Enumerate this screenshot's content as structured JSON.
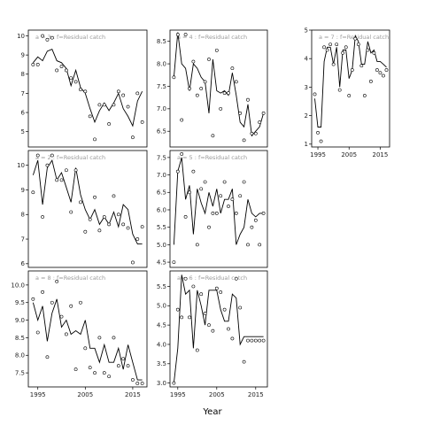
{
  "xlabel": "Year",
  "chart_data": {
    "type": "line",
    "xlabel": "Year",
    "ylabel": "",
    "xlim": [
      1993,
      2018
    ],
    "x_ticks": [
      1995,
      2005,
      2015
    ],
    "panels": [
      {
        "label": "a = 3 : f=Residual catch",
        "col": 0,
        "row": 0,
        "show_x_ticks": false,
        "ylim": [
          4.2,
          10.3
        ],
        "y_ticks": [
          5,
          6,
          7,
          8,
          9,
          10
        ],
        "line_x": [
          1994,
          1995,
          1996,
          1997,
          1998,
          1999,
          2000,
          2001,
          2002,
          2003,
          2004,
          2005,
          2006,
          2007,
          2008,
          2009,
          2010,
          2011,
          2012,
          2013,
          2014,
          2015,
          2016,
          2017
        ],
        "line_y": [
          8.6,
          8.9,
          8.7,
          9.2,
          9.3,
          8.7,
          8.6,
          8.3,
          7.4,
          8.2,
          7.3,
          7.0,
          6.2,
          5.5,
          6.1,
          6.5,
          6.1,
          6.5,
          7.0,
          6.2,
          5.8,
          5.3,
          6.6,
          7.1
        ],
        "points_x": [
          1994,
          1995,
          1996,
          1997,
          1998,
          1999,
          2000,
          2001,
          2002,
          2003,
          2004,
          2005,
          2006,
          2007,
          2008,
          2009,
          2010,
          2011,
          2012,
          2013,
          2014,
          2015,
          2016,
          2017
        ],
        "points_y": [
          8.5,
          8.5,
          10.0,
          9.8,
          9.9,
          8.2,
          8.4,
          8.2,
          7.8,
          7.6,
          7.2,
          7.1,
          5.8,
          4.6,
          6.4,
          6.4,
          5.4,
          6.4,
          7.1,
          6.9,
          6.3,
          4.7,
          7.0,
          5.5
        ]
      },
      {
        "label": "a = 4 : f=Residual catch",
        "col": 1,
        "row": 0,
        "show_x_ticks": false,
        "ylim": [
          6.15,
          8.75
        ],
        "y_ticks": [
          6.5,
          7.0,
          7.5,
          8.0,
          8.5
        ],
        "line_x": [
          1994,
          1995,
          1996,
          1997,
          1998,
          1999,
          2000,
          2001,
          2002,
          2003,
          2004,
          2005,
          2006,
          2007,
          2008,
          2009,
          2010,
          2011,
          2012,
          2013,
          2014,
          2015,
          2016,
          2017
        ],
        "line_y": [
          7.7,
          8.7,
          8.0,
          7.9,
          7.4,
          8.0,
          7.9,
          7.7,
          7.6,
          6.9,
          8.1,
          7.4,
          7.35,
          7.4,
          7.3,
          7.8,
          7.3,
          6.7,
          6.6,
          7.1,
          6.4,
          6.5,
          6.6,
          6.9
        ],
        "points_x": [
          1994,
          1995,
          1996,
          1997,
          1998,
          1999,
          2000,
          2001,
          2002,
          2003,
          2004,
          2005,
          2006,
          2007,
          2008,
          2009,
          2010,
          2011,
          2012,
          2013,
          2014,
          2015,
          2016,
          2017
        ],
        "points_y": [
          7.7,
          8.65,
          6.75,
          8.65,
          7.45,
          8.05,
          7.3,
          7.45,
          7.6,
          8.1,
          6.4,
          8.3,
          7.0,
          7.35,
          7.35,
          7.9,
          7.6,
          6.9,
          6.3,
          7.2,
          6.45,
          6.45,
          6.7,
          6.9
        ]
      },
      {
        "label": "a = 7 : f=Residual catch",
        "col": 2,
        "row": 0,
        "show_x_ticks": true,
        "ylim": [
          0.9,
          5.0
        ],
        "y_ticks": [
          1,
          2,
          3,
          4,
          5
        ],
        "line_x": [
          1994,
          1995,
          1996,
          1997,
          1998,
          1999,
          2000,
          2001,
          2002,
          2003,
          2004,
          2005,
          2006,
          2007,
          2008,
          2009,
          2010,
          2011,
          2012,
          2013,
          2014,
          2015,
          2016,
          2017
        ],
        "line_y": [
          2.6,
          1.6,
          1.6,
          3.9,
          4.4,
          4.4,
          3.8,
          4.4,
          3.0,
          4.3,
          4.3,
          3.3,
          3.6,
          4.8,
          4.6,
          3.8,
          3.8,
          4.6,
          4.2,
          4.3,
          3.9,
          3.9,
          3.8,
          3.7
        ],
        "points_x": [
          1994,
          1995,
          1996,
          1997,
          1998,
          1999,
          2000,
          2001,
          2002,
          2003,
          2004,
          2005,
          2006,
          2007,
          2008,
          2009,
          2010,
          2011,
          2012,
          2013,
          2014,
          2015,
          2016,
          2017
        ],
        "points_y": [
          2.75,
          1.4,
          1.1,
          4.4,
          4.3,
          4.5,
          3.8,
          4.5,
          2.9,
          4.2,
          4.4,
          2.7,
          3.6,
          4.7,
          4.5,
          3.75,
          2.7,
          4.3,
          3.2,
          4.2,
          3.6,
          3.5,
          3.4,
          3.6
        ]
      },
      {
        "label": "a = 2 : f=Residual catch",
        "col": 0,
        "row": 1,
        "show_x_ticks": false,
        "ylim": [
          5.85,
          10.6
        ],
        "y_ticks": [
          6,
          7,
          8,
          9,
          10
        ],
        "line_x": [
          1994,
          1995,
          1996,
          1997,
          1998,
          1999,
          2000,
          2001,
          2002,
          2003,
          2004,
          2005,
          2006,
          2007,
          2008,
          2009,
          2010,
          2011,
          2012,
          2013,
          2014,
          2015,
          2016,
          2017
        ],
        "line_y": [
          9.6,
          10.2,
          8.4,
          9.9,
          10.2,
          9.4,
          9.7,
          9.1,
          8.5,
          9.9,
          8.8,
          8.2,
          7.8,
          8.2,
          7.6,
          7.9,
          7.6,
          8.1,
          7.5,
          8.4,
          8.2,
          7.2,
          6.8,
          6.8
        ],
        "points_x": [
          1994,
          1995,
          1996,
          1997,
          1998,
          1999,
          2000,
          2001,
          2002,
          2003,
          2004,
          2005,
          2006,
          2007,
          2008,
          2009,
          2010,
          2011,
          2012,
          2013,
          2014,
          2015,
          2016,
          2017
        ],
        "points_y": [
          8.9,
          10.4,
          7.9,
          10.0,
          10.4,
          9.4,
          9.4,
          9.8,
          8.1,
          9.8,
          8.5,
          7.3,
          7.8,
          8.7,
          7.35,
          7.9,
          7.6,
          8.75,
          8.0,
          7.6,
          7.45,
          6.05,
          7.0,
          7.5
        ]
      },
      {
        "label": "a = 5 : f=Residual catch",
        "col": 1,
        "row": 1,
        "show_x_ticks": false,
        "ylim": [
          4.35,
          7.7
        ],
        "y_ticks": [
          4.5,
          5.0,
          5.5,
          6.0,
          6.5,
          7.0,
          7.5
        ],
        "line_x": [
          1994,
          1995,
          1996,
          1997,
          1998,
          1999,
          2000,
          2001,
          2002,
          2003,
          2004,
          2005,
          2006,
          2007,
          2008,
          2009,
          2010,
          2011,
          2012,
          2013,
          2014,
          2015,
          2016,
          2017
        ],
        "line_y": [
          5.0,
          7.1,
          7.5,
          6.3,
          6.7,
          5.3,
          6.6,
          6.2,
          5.9,
          6.5,
          6.1,
          6.6,
          5.9,
          6.3,
          6.3,
          6.6,
          5.0,
          5.3,
          5.5,
          6.3,
          5.9,
          5.8,
          5.9,
          5.9
        ],
        "points_x": [
          1994,
          1995,
          1996,
          1997,
          1998,
          1999,
          2000,
          2001,
          2002,
          2003,
          2004,
          2005,
          2006,
          2007,
          2008,
          2009,
          2010,
          2011,
          2012,
          2013,
          2014,
          2015,
          2016,
          2017
        ],
        "points_y": [
          4.5,
          7.1,
          7.6,
          5.8,
          6.5,
          7.1,
          5.0,
          6.6,
          6.8,
          5.5,
          5.9,
          5.9,
          6.4,
          6.8,
          6.1,
          6.3,
          5.9,
          6.4,
          6.8,
          5.0,
          5.5,
          5.7,
          5.0,
          5.9
        ]
      },
      {
        "label": "a = 8 : f=Residual catch",
        "col": 0,
        "row": 2,
        "show_x_ticks": true,
        "ylim": [
          7.1,
          10.4
        ],
        "y_ticks": [
          7.5,
          8.0,
          8.5,
          9.0,
          9.5,
          10.0
        ],
        "line_x": [
          1994,
          1995,
          1996,
          1997,
          1998,
          1999,
          2000,
          2001,
          2002,
          2003,
          2004,
          2005,
          2006,
          2007,
          2008,
          2009,
          2010,
          2011,
          2012,
          2013,
          2014,
          2015,
          2016,
          2017
        ],
        "line_y": [
          9.5,
          9.0,
          9.4,
          8.4,
          9.2,
          9.6,
          8.8,
          9.0,
          8.6,
          8.7,
          8.6,
          9.0,
          8.2,
          8.2,
          7.8,
          8.3,
          7.8,
          7.8,
          8.2,
          7.6,
          8.3,
          7.8,
          7.3,
          7.3
        ],
        "points_x": [
          1994,
          1995,
          1996,
          1997,
          1998,
          1999,
          2000,
          2001,
          2002,
          2003,
          2004,
          2005,
          2006,
          2007,
          2008,
          2009,
          2010,
          2011,
          2012,
          2013,
          2014,
          2015,
          2016,
          2017
        ],
        "points_y": [
          9.6,
          8.65,
          9.8,
          7.95,
          9.5,
          10.1,
          9.1,
          8.6,
          9.4,
          7.6,
          9.5,
          8.2,
          7.65,
          7.5,
          8.5,
          7.5,
          7.4,
          8.5,
          7.7,
          7.9,
          7.7,
          7.3,
          7.2,
          7.2
        ]
      },
      {
        "label": "a = 6 : f=Residual catch",
        "col": 1,
        "row": 2,
        "show_x_ticks": true,
        "ylim": [
          2.9,
          5.9
        ],
        "y_ticks": [
          3.0,
          3.5,
          4.0,
          4.5,
          5.0,
          5.5
        ],
        "line_x": [
          1994,
          1995,
          1996,
          1997,
          1998,
          1999,
          2000,
          2001,
          2002,
          2003,
          2004,
          2005,
          2006,
          2007,
          2008,
          2009,
          2010,
          2011,
          2012,
          2013,
          2014,
          2015,
          2016,
          2017
        ],
        "line_y": [
          3.0,
          3.9,
          5.8,
          5.3,
          5.4,
          3.9,
          5.4,
          5.0,
          4.5,
          5.4,
          5.4,
          5.4,
          4.9,
          4.6,
          4.6,
          5.3,
          5.2,
          4.0,
          4.2,
          4.2,
          4.2,
          4.2,
          4.2,
          4.2
        ],
        "points_x": [
          1994,
          1995,
          1996,
          1997,
          1998,
          1999,
          2000,
          2001,
          2002,
          2003,
          2004,
          2005,
          2006,
          2007,
          2008,
          2009,
          2010,
          2011,
          2012,
          2013,
          2014,
          2015,
          2016,
          2017
        ],
        "points_y": [
          3.0,
          4.9,
          4.7,
          5.7,
          4.7,
          5.5,
          3.85,
          5.3,
          4.8,
          4.5,
          4.35,
          5.45,
          5.35,
          4.9,
          4.4,
          4.15,
          5.7,
          4.95,
          3.55,
          4.1,
          4.1,
          4.1,
          4.1,
          4.1
        ]
      }
    ]
  }
}
